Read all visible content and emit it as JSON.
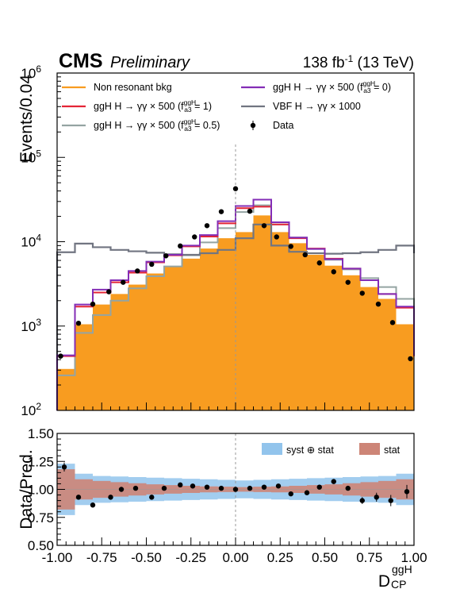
{
  "chart_data": [
    {
      "type": "bar",
      "header": {
        "experiment": "CMS",
        "status": "Preliminary",
        "lumi": "138 fb",
        "lumi_exp": "-1",
        "energy": " (13 TeV)"
      },
      "ylabel": "Events/0.04",
      "yscale": "log",
      "ylim": [
        100,
        1000000
      ],
      "ytick_labels": [
        {
          "base": "10",
          "exp": "2",
          "v": 100
        },
        {
          "base": "10",
          "exp": "3",
          "v": 1000
        },
        {
          "base": "10",
          "exp": "4",
          "v": 10000
        },
        {
          "base": "10",
          "exp": "5",
          "v": 100000
        },
        {
          "base": "10",
          "exp": "6",
          "v": 1000000
        }
      ],
      "xlim": [
        -1.0,
        1.0
      ],
      "bin_edges": [
        -1.0,
        -0.9,
        -0.8,
        -0.7,
        -0.6,
        -0.5,
        -0.4,
        -0.3,
        -0.2,
        -0.1,
        0.0,
        0.1,
        0.2,
        0.3,
        0.4,
        0.5,
        0.6,
        0.7,
        0.8,
        0.9,
        1.0
      ],
      "series": [
        {
          "name": "Non resonant bkg",
          "kind": "filled",
          "color": "#f89c20",
          "values": [
            310,
            1050,
            1800,
            2400,
            3100,
            4200,
            5100,
            6300,
            8300,
            11000,
            13000,
            20500,
            13000,
            9600,
            7000,
            5200,
            4000,
            2900,
            2100,
            1050,
            310
          ]
        },
        {
          "name": "ggH H → γγ × 500 (f_a3^ggH = 1)",
          "kind": "step",
          "color": "#e42536",
          "values": [
            440,
            1700,
            2500,
            3300,
            4300,
            5700,
            6900,
            8800,
            11500,
            16500,
            25000,
            26000,
            16000,
            11000,
            8300,
            6300,
            4800,
            3500,
            2400,
            1650,
            440
          ]
        },
        {
          "name": "ggH H → γγ × 500 (f_a3^ggH = 0.5)",
          "kind": "step",
          "color": "#94a4a2",
          "values": [
            260,
            830,
            1350,
            2000,
            2800,
            3900,
            5100,
            6900,
            9800,
            14500,
            22500,
            27000,
            16000,
            11200,
            8200,
            6100,
            4700,
            3700,
            2900,
            2100,
            700
          ]
        },
        {
          "name": "ggH H → γγ × 500 (f_a3^ggH = 0)",
          "kind": "step",
          "color": "#832db6",
          "values": [
            450,
            1800,
            2700,
            3500,
            4500,
            5800,
            7000,
            9000,
            12000,
            17500,
            26500,
            31500,
            17000,
            11200,
            8200,
            6200,
            4800,
            3500,
            2400,
            1700,
            450
          ]
        },
        {
          "name": "VBF H → γγ × 1000",
          "kind": "step",
          "color": "#717581",
          "values": [
            7500,
            9500,
            8600,
            8000,
            7700,
            7400,
            7100,
            7000,
            7300,
            8000,
            11000,
            16000,
            9000,
            7600,
            7300,
            7200,
            7300,
            7500,
            8000,
            9000,
            7300
          ]
        },
        {
          "name": "Data",
          "kind": "points",
          "color": "#000000",
          "x": [
            -0.98,
            -0.88,
            -0.8,
            -0.71,
            -0.63,
            -0.55,
            -0.47,
            -0.39,
            -0.31,
            -0.23,
            -0.16,
            -0.08,
            0.0,
            0.08,
            0.16,
            0.23,
            0.31,
            0.39,
            0.47,
            0.55,
            0.63,
            0.71,
            0.8,
            0.88,
            0.98
          ],
          "values": [
            440,
            1080,
            1820,
            2550,
            3300,
            4500,
            5400,
            6800,
            8900,
            11400,
            15500,
            22700,
            42500,
            23000,
            15500,
            11400,
            8800,
            7000,
            5600,
            4400,
            3300,
            2450,
            1820,
            1100,
            410
          ]
        }
      ],
      "legend": [
        {
          "label": "Non resonant bkg",
          "sup": "",
          "sub": "",
          "tail": "",
          "color": "#f89c20",
          "marker": "line"
        },
        {
          "label": "ggH H → γγ × 500 (f",
          "sup": "ggH",
          "sub": "a3",
          "tail": " = 0)",
          "color": "#832db6",
          "marker": "line"
        },
        {
          "label": "ggH H → γγ × 500 (f",
          "sup": "ggH",
          "sub": "a3",
          "tail": " = 1)",
          "color": "#e42536",
          "marker": "line"
        },
        {
          "label": "VBF H → γγ × 1000",
          "sup": "",
          "sub": "",
          "tail": "",
          "color": "#717581",
          "marker": "line"
        },
        {
          "label": "ggH H → γγ × 500 (f",
          "sup": "ggH",
          "sub": "a3",
          "tail": " = 0.5)",
          "color": "#94a4a2",
          "marker": "line"
        },
        {
          "label": "Data",
          "sup": "",
          "sub": "",
          "tail": "",
          "color": "#000000",
          "marker": "point"
        }
      ],
      "reference_line": {
        "x": 0.0,
        "style": "dashed",
        "color": "#999999"
      }
    },
    {
      "type": "scatter",
      "ylabel": "Data/Pred.",
      "ylim": [
        0.5,
        1.5
      ],
      "ytick_labels": [
        "0.50",
        "0.75",
        "1.00",
        "1.25",
        "1.50"
      ],
      "ytick_values": [
        0.5,
        0.75,
        1.0,
        1.25,
        1.5
      ],
      "xlim": [
        -1.0,
        1.0
      ],
      "xtick_labels": [
        "-1.00",
        "-0.75",
        "-0.50",
        "-0.25",
        "0.00",
        "0.25",
        "0.50",
        "0.75",
        "1.00"
      ],
      "xtick_values": [
        -1.0,
        -0.75,
        -0.5,
        -0.25,
        0.0,
        0.25,
        0.5,
        0.75,
        1.0
      ],
      "xlabel": {
        "base": "D",
        "sup": "ggH",
        "sub": "CP"
      },
      "bands": [
        {
          "name": "syst ⊕ stat",
          "color": "#92c4ec",
          "x": [
            -1.0,
            -0.9,
            -0.8,
            -0.7,
            -0.6,
            -0.5,
            -0.4,
            -0.3,
            -0.2,
            -0.1,
            0.0,
            0.1,
            0.2,
            0.3,
            0.4,
            0.5,
            0.6,
            0.7,
            0.8,
            0.9,
            1.0
          ],
          "half_width": [
            0.23,
            0.14,
            0.12,
            0.115,
            0.11,
            0.105,
            0.1,
            0.095,
            0.09,
            0.085,
            0.08,
            0.085,
            0.09,
            0.095,
            0.1,
            0.105,
            0.11,
            0.115,
            0.12,
            0.14,
            0.23
          ]
        },
        {
          "name": "stat",
          "color": "#cd8577",
          "x": [
            -1.0,
            -0.9,
            -0.8,
            -0.7,
            -0.6,
            -0.5,
            -0.4,
            -0.3,
            -0.2,
            -0.1,
            0.0,
            0.1,
            0.2,
            0.3,
            0.4,
            0.5,
            0.6,
            0.7,
            0.8,
            0.9,
            1.0
          ],
          "half_width": [
            0.18,
            0.09,
            0.075,
            0.065,
            0.055,
            0.045,
            0.038,
            0.032,
            0.027,
            0.024,
            0.02,
            0.024,
            0.027,
            0.032,
            0.038,
            0.045,
            0.055,
            0.065,
            0.075,
            0.09,
            0.18
          ]
        }
      ],
      "legend": [
        {
          "label": "syst ⊕ stat",
          "color": "#92c4ec"
        },
        {
          "label": "stat",
          "color": "#cd8577"
        }
      ],
      "points": {
        "x": [
          -0.96,
          -0.88,
          -0.8,
          -0.7,
          -0.64,
          -0.56,
          -0.47,
          -0.4,
          -0.31,
          -0.24,
          -0.16,
          -0.08,
          0.0,
          0.08,
          0.16,
          0.24,
          0.31,
          0.4,
          0.47,
          0.55,
          0.63,
          0.71,
          0.79,
          0.87,
          0.96
        ],
        "y": [
          1.2,
          0.93,
          0.86,
          0.93,
          1.0,
          1.01,
          0.93,
          1.01,
          1.04,
          1.03,
          1.02,
          1.01,
          1.0,
          1.01,
          1.02,
          1.03,
          0.96,
          0.97,
          1.02,
          1.07,
          1.01,
          0.9,
          0.93,
          0.9,
          0.98
        ],
        "err": [
          0.04,
          0.02,
          0.015,
          0.015,
          0.012,
          0.012,
          0.012,
          0.012,
          0.012,
          0.012,
          0.01,
          0.01,
          0.008,
          0.01,
          0.01,
          0.012,
          0.012,
          0.012,
          0.012,
          0.015,
          0.015,
          0.03,
          0.04,
          0.05,
          0.06
        ]
      },
      "reference_line": {
        "x": 0.0,
        "style": "dashed",
        "color": "#999999"
      }
    }
  ]
}
